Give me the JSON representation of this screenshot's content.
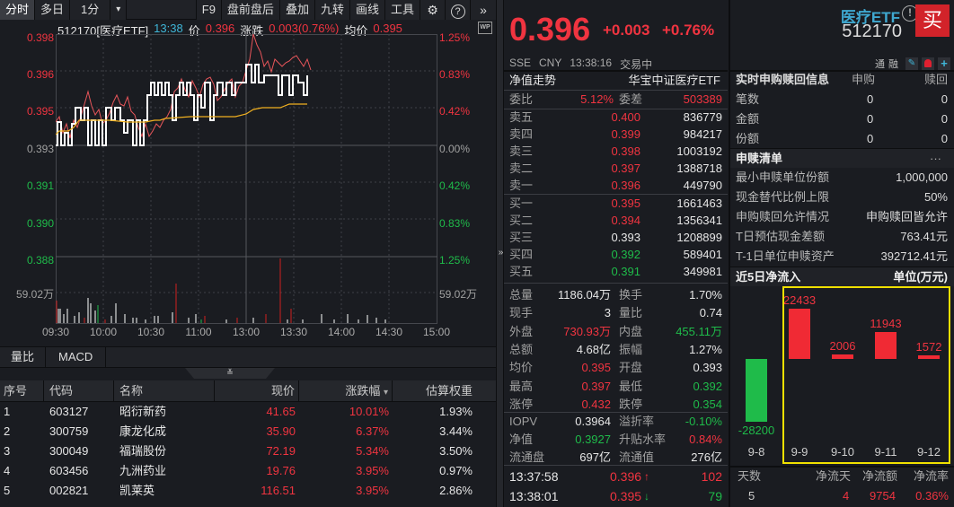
{
  "toolbar": {
    "tabs": [
      "分时",
      "多日",
      "1分"
    ],
    "dropdown_icon": "▾",
    "buttons": [
      "F9",
      "盘前盘后",
      "叠加",
      "九转",
      "画线",
      "工具"
    ],
    "settings_icon": "⚙",
    "help_icon": "?",
    "more_icon": "»"
  },
  "chart_header": {
    "symbol": "512170[医疗ETF]",
    "time": "13:38",
    "price_label": "价",
    "price": "0.396",
    "change_label": "涨跌",
    "change": "0.003(0.76%)",
    "avg_label": "均价",
    "avg": "0.395",
    "wp_badge": "WP"
  },
  "chart_data": {
    "type": "line",
    "title": "512170[医疗ETF] 分时",
    "y_left_ticks": [
      "0.398",
      "0.396",
      "0.395",
      "0.393",
      "0.391",
      "0.390",
      "0.388"
    ],
    "y_right_ticks": [
      "1.25%",
      "0.83%",
      "0.42%",
      "0.00%",
      "0.42%",
      "0.83%",
      "1.25%"
    ],
    "x_ticks": [
      "09:30",
      "10:00",
      "10:30",
      "11:00",
      "13:00",
      "13:30",
      "14:00",
      "14:30",
      "15:00"
    ],
    "volume_label": "59.02万",
    "prev_close": 0.393,
    "ylim": [
      0.388,
      0.398
    ],
    "series": [
      {
        "name": "price",
        "color": "#ffffff",
        "x": [
          "09:30",
          "09:45",
          "10:00",
          "10:15",
          "10:30",
          "10:45",
          "11:00",
          "11:15",
          "13:00",
          "13:15",
          "13:30",
          "13:38"
        ],
        "values": [
          0.393,
          0.394,
          0.395,
          0.394,
          0.393,
          0.395,
          0.395,
          0.395,
          0.396,
          0.396,
          0.396,
          0.396
        ]
      },
      {
        "name": "avg_price",
        "color": "#f0b020",
        "x": [
          "09:30",
          "10:00",
          "10:30",
          "11:00",
          "13:00",
          "13:38"
        ],
        "values": [
          0.3935,
          0.394,
          0.3942,
          0.3944,
          0.3947,
          0.395
        ]
      }
    ]
  },
  "sub_tabs": [
    "量比",
    "MACD"
  ],
  "collapse_icon": "≚",
  "holdings": {
    "columns": [
      "序号",
      "代码",
      "名称",
      "现价",
      "涨跌幅",
      "估算权重"
    ],
    "sort_icon": "▾",
    "rows": [
      {
        "idx": "1",
        "code": "603127",
        "name": "昭衍新药",
        "price": "41.65",
        "chg": "10.01%",
        "weight": "1.93%"
      },
      {
        "idx": "2",
        "code": "300759",
        "name": "康龙化成",
        "price": "35.90",
        "chg": "6.37%",
        "weight": "3.44%"
      },
      {
        "idx": "3",
        "code": "300049",
        "name": "福瑞股份",
        "price": "72.19",
        "chg": "5.34%",
        "weight": "3.50%"
      },
      {
        "idx": "4",
        "code": "603456",
        "name": "九洲药业",
        "price": "19.76",
        "chg": "3.95%",
        "weight": "0.97%"
      },
      {
        "idx": "5",
        "code": "002821",
        "name": "凯莱英",
        "price": "116.51",
        "chg": "3.95%",
        "weight": "2.86%"
      }
    ]
  },
  "quote": {
    "price": "0.396",
    "change": "+0.003",
    "change_pct": "+0.76%",
    "exchange": "SSE",
    "currency": "CNY",
    "time": "13:38:16",
    "status": "交易中"
  },
  "header_right": {
    "name": "医疗ETF",
    "code": "512170",
    "buy_label": "买",
    "tool_labels": [
      "通",
      "融"
    ],
    "edit_icon": "✎",
    "alert_icon": "🔔",
    "add_icon": "+"
  },
  "order_book": {
    "nav_trend_label": "净值走势",
    "fund_name": "华宝中证医疗ETF",
    "ratio_label": "委比",
    "ratio": "5.12%",
    "diff_label": "委差",
    "diff": "503389",
    "asks": [
      {
        "label": "卖五",
        "price": "0.400",
        "vol": "836779",
        "color": "red"
      },
      {
        "label": "卖四",
        "price": "0.399",
        "vol": "984217",
        "color": "red"
      },
      {
        "label": "卖三",
        "price": "0.398",
        "vol": "1003192",
        "color": "red"
      },
      {
        "label": "卖二",
        "price": "0.397",
        "vol": "1388718",
        "color": "red"
      },
      {
        "label": "卖一",
        "price": "0.396",
        "vol": "449790",
        "color": "red"
      }
    ],
    "bids": [
      {
        "label": "买一",
        "price": "0.395",
        "vol": "1661463",
        "color": "red"
      },
      {
        "label": "买二",
        "price": "0.394",
        "vol": "1356341",
        "color": "red"
      },
      {
        "label": "买三",
        "price": "0.393",
        "vol": "1208899",
        "color": "white"
      },
      {
        "label": "买四",
        "price": "0.392",
        "vol": "589401",
        "color": "green"
      },
      {
        "label": "买五",
        "price": "0.391",
        "vol": "349981",
        "color": "green"
      }
    ]
  },
  "stats": [
    {
      "l1": "总量",
      "v1": "1186.04万",
      "c1": "white",
      "l2": "换手",
      "v2": "1.70%",
      "c2": "white"
    },
    {
      "l1": "现手",
      "v1": "3",
      "c1": "white",
      "l2": "量比",
      "v2": "0.74",
      "c2": "white"
    },
    {
      "l1": "外盘",
      "v1": "730.93万",
      "c1": "red",
      "l2": "内盘",
      "v2": "455.11万",
      "c2": "green"
    },
    {
      "l1": "总额",
      "v1": "4.68亿",
      "c1": "white",
      "l2": "振幅",
      "v2": "1.27%",
      "c2": "white"
    },
    {
      "l1": "均价",
      "v1": "0.395",
      "c1": "red",
      "l2": "开盘",
      "v2": "0.393",
      "c2": "white"
    },
    {
      "l1": "最高",
      "v1": "0.397",
      "c1": "red",
      "l2": "最低",
      "v2": "0.392",
      "c2": "green"
    },
    {
      "l1": "涨停",
      "v1": "0.432",
      "c1": "red",
      "l2": "跌停",
      "v2": "0.354",
      "c2": "green"
    },
    {
      "l1": "IOPV",
      "v1": "0.3964",
      "c1": "white",
      "l2": "溢折率",
      "v2": "-0.10%",
      "c2": "green"
    },
    {
      "l1": "净值",
      "v1": "0.3927",
      "c1": "green",
      "l2": "升贴水率",
      "v2": "0.84%",
      "c2": "red"
    },
    {
      "l1": "流通盘",
      "v1": "697亿",
      "c1": "white",
      "l2": "流通值",
      "v2": "276亿",
      "c2": "white"
    }
  ],
  "ticks": [
    {
      "time": "13:37:58",
      "price": "0.396",
      "dir": "↑",
      "vol": "102",
      "vcolor": "red"
    },
    {
      "time": "13:38:01",
      "price": "0.395",
      "dir": "↓",
      "vol": "79",
      "vcolor": "green"
    }
  ],
  "creation_redemption": {
    "title": "实时申购赎回信息",
    "col_buy": "申购",
    "col_redeem": "赎回",
    "rows": [
      {
        "label": "笔数",
        "buy": "0",
        "redeem": "0"
      },
      {
        "label": "金额",
        "buy": "0",
        "redeem": "0"
      },
      {
        "label": "份额",
        "buy": "0",
        "redeem": "0"
      }
    ]
  },
  "pcf": {
    "title": "申赎清单",
    "more": "···",
    "rows": [
      {
        "label": "最小申赎单位份额",
        "value": "1,000,000"
      },
      {
        "label": "现金替代比例上限",
        "value": "50%"
      },
      {
        "label": "申购赎回允许情况",
        "value": "申购赎回皆允许"
      },
      {
        "label": "T日预估现金差额",
        "value": "763.41元"
      },
      {
        "label": "T-1日单位申赎资产",
        "value": "392712.41元"
      }
    ]
  },
  "net_flow": {
    "title": "近5日净流入",
    "unit": "单位(万元)",
    "bars": [
      {
        "date": "9-8",
        "value": "-28200",
        "num": -28200
      },
      {
        "date": "9-9",
        "value": "22433",
        "num": 22433
      },
      {
        "date": "9-10",
        "value": "2006",
        "num": 2006
      },
      {
        "date": "9-11",
        "value": "11943",
        "num": 11943
      },
      {
        "date": "9-12",
        "value": "1572",
        "num": 1572
      }
    ],
    "summary_headers": [
      "天数",
      "净流天",
      "净流额",
      "净流率"
    ],
    "summary_values": [
      "5",
      "4",
      "9754",
      "0.36%"
    ]
  }
}
